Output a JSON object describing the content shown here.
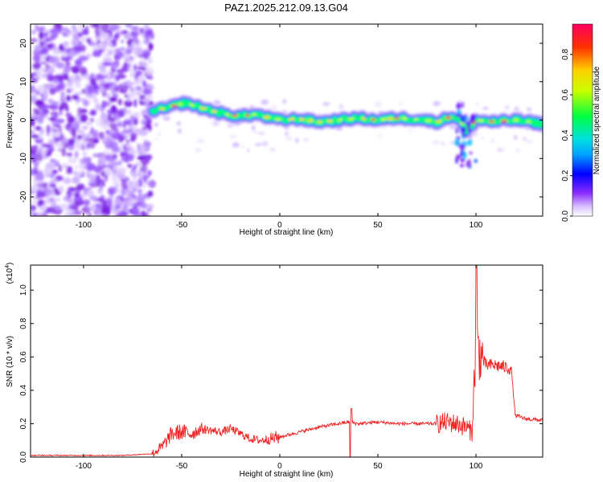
{
  "title": "PAZ1.2025.212.09.13.G04",
  "chart_data": [
    {
      "type": "heatmap",
      "xlabel": "Height of straight line (km)",
      "ylabel": "Frequency (Hz)",
      "xlim": [
        -127,
        134
      ],
      "ylim": [
        -25,
        25
      ],
      "x_ticks": [
        -100,
        -50,
        0,
        50,
        100
      ],
      "y_ticks": [
        -20,
        -10,
        0,
        10,
        20
      ],
      "colorbar": {
        "label": "Normalized spectral amplitude",
        "range": [
          0.0,
          0.95
        ],
        "ticks": [
          0.0,
          0.2,
          0.4,
          0.6,
          0.8
        ],
        "colormap": [
          "#ffffff",
          "#b080ff",
          "#7a00ff",
          "#0000ff",
          "#00c8ff",
          "#00ff60",
          "#c8ff00",
          "#ffd000",
          "#ff0000",
          "#ff0060"
        ]
      },
      "noise_region_x": [
        -127,
        -65
      ],
      "ridge": {
        "x": [
          -65,
          -58,
          -52,
          -48,
          -42,
          -35,
          -28,
          -20,
          -12,
          -5,
          0,
          10,
          20,
          30,
          40,
          50,
          60,
          70,
          80,
          88,
          92,
          95,
          100,
          110,
          120,
          134
        ],
        "freq": [
          2.5,
          3.0,
          4.0,
          4.5,
          3.5,
          2.5,
          1.5,
          1.0,
          1.5,
          0.5,
          0.0,
          0.3,
          -0.5,
          0.0,
          0.5,
          0.0,
          0.5,
          0.3,
          -0.5,
          1.0,
          0.0,
          -3.0,
          0.0,
          -0.5,
          0.0,
          -1.0
        ]
      },
      "disturbance": {
        "x": [
          90,
          100
        ],
        "freq_range": [
          -12,
          5
        ]
      }
    },
    {
      "type": "line",
      "xlabel": "Height of straight line (km)",
      "ylabel": "SNR (10 * v/v)",
      "y_multiplier": "(x10",
      "y_multiplier_exp": "4",
      "y_multiplier_close": ")",
      "xlim": [
        -127,
        134
      ],
      "ylim": [
        0.0,
        1.15
      ],
      "x_ticks": [
        -100,
        -50,
        0,
        50,
        100
      ],
      "y_ticks": [
        0.0,
        0.2,
        0.4,
        0.6,
        0.8,
        1.0
      ],
      "color": "#ee2222",
      "series": [
        {
          "x": [
            -127,
            -100,
            -80,
            -65,
            -60,
            -55,
            -50,
            -45,
            -40,
            -35,
            -30,
            -25,
            -20,
            -15,
            -10,
            -5,
            0,
            10,
            20,
            30,
            35,
            40,
            50,
            60,
            70,
            80,
            85,
            90,
            95,
            98,
            100,
            102,
            105,
            110,
            118,
            120,
            125,
            134
          ],
          "values": [
            0.01,
            0.01,
            0.01,
            0.02,
            0.06,
            0.14,
            0.15,
            0.14,
            0.17,
            0.16,
            0.15,
            0.17,
            0.14,
            0.11,
            0.1,
            0.11,
            0.12,
            0.15,
            0.18,
            0.2,
            0.21,
            0.2,
            0.21,
            0.2,
            0.2,
            0.2,
            0.21,
            0.2,
            0.18,
            0.15,
            0.7,
            0.62,
            0.55,
            0.55,
            0.53,
            0.25,
            0.23,
            0.22
          ]
        }
      ]
    }
  ]
}
